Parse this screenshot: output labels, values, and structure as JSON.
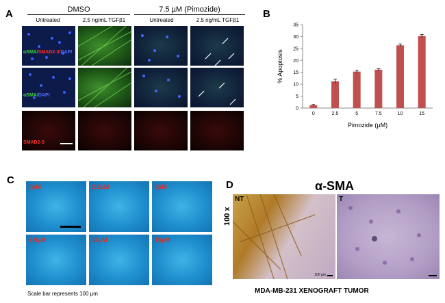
{
  "panel_a": {
    "label": "A",
    "group_dmso": "DMSO",
    "group_pimozide": "7.5 µM (Pimozide)",
    "col_untreated_1": "Untreated",
    "col_tgf_1": "2.5 ng/mL TGFβ1",
    "col_untreated_2": "Untreated",
    "col_tgf_2": "2.5 ng/mL TGFβ1",
    "row1_label_a": "αSMA/",
    "row1_label_b": "SMAD2-3/",
    "row1_label_c": "DAPI",
    "row2_label_a": "αSMA/",
    "row2_label_b": "DAPI",
    "row3_label": "SMAD2-3"
  },
  "panel_b": {
    "label": "B"
  },
  "panel_c": {
    "label": "C",
    "tiles": [
      "0µM",
      "2.5µM",
      "5µM",
      "7.5µM",
      "10µM",
      "15µM"
    ],
    "scale_note": "Scale bar represents 100 µm"
  },
  "panel_d": {
    "label": "D",
    "title": "α-SMA",
    "side_label": "100 x",
    "nt": "NT",
    "t": "T",
    "caption": "MDA-MB-231 XENOGRAFT TUMOR",
    "tiny_scale": "100 µm"
  },
  "colors": {
    "bar": "#c0504d",
    "c_label": "#d6302a"
  },
  "chart_data": {
    "type": "bar",
    "categories": [
      "0",
      "2.5",
      "5",
      "7.5",
      "10",
      "15"
    ],
    "values": [
      1.2,
      11.2,
      15.3,
      16.1,
      26.3,
      30.2
    ],
    "errors": [
      0.3,
      0.9,
      0.5,
      0.4,
      0.6,
      0.6
    ],
    "ylim": [
      0,
      35
    ],
    "yticks": [
      0,
      5,
      10,
      15,
      20,
      25,
      30,
      35
    ],
    "xlabel": "Pimozide (µM)",
    "ylabel": "% Apoptosis",
    "title": "",
    "grid": false
  }
}
